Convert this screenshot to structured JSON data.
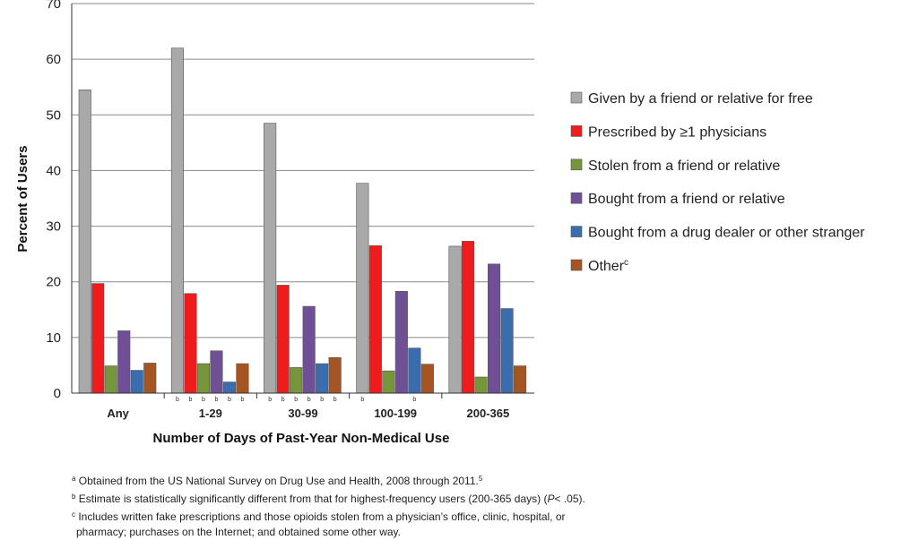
{
  "chart_data": {
    "type": "bar",
    "title": "",
    "xlabel": "Number of Days of Past-Year Non-Medical Use",
    "ylabel": "Percent of Users",
    "ylim": [
      0,
      70
    ],
    "yticks": [
      "0",
      "10",
      "20",
      "30",
      "40",
      "50",
      "60",
      "70"
    ],
    "grid": true,
    "legend_position": "right",
    "categories": [
      "Any",
      "1-29",
      "30-99",
      "100-199",
      "200-365"
    ],
    "series": [
      {
        "name": "Given by a friend or relative for free",
        "color": "#a9a9a9",
        "values": [
          54.5,
          62.0,
          48.5,
          37.7,
          26.4
        ]
      },
      {
        "name": "Prescribed by ≥1 physicians",
        "color": "#ee1c1c",
        "values": [
          19.7,
          17.9,
          19.4,
          26.5,
          27.3
        ]
      },
      {
        "name": "Stolen from a friend or relative",
        "color": "#77963c",
        "values": [
          4.9,
          5.3,
          4.6,
          4.0,
          2.9
        ]
      },
      {
        "name": "Bought from a friend or relative",
        "color": "#6f4f95",
        "values": [
          11.2,
          7.6,
          15.6,
          18.3,
          23.2
        ]
      },
      {
        "name": "Bought from a drug dealer or other stranger",
        "color": "#3a6cae",
        "values": [
          4.1,
          2.0,
          5.3,
          8.1,
          15.2
        ]
      },
      {
        "name": "Other",
        "color": "#a55522",
        "values": [
          5.4,
          5.3,
          6.4,
          5.2,
          4.9
        ]
      }
    ],
    "significance_marks": [
      {
        "category": "1-29",
        "series": [
          0,
          1,
          2,
          3,
          4,
          5
        ],
        "label": "b"
      },
      {
        "category": "30-99",
        "series": [
          0,
          1,
          2,
          3,
          4,
          5
        ],
        "label": "b"
      },
      {
        "category": "100-199",
        "series": [
          0,
          4
        ],
        "label": "b"
      }
    ],
    "legend_superscripts": {
      "5": "c"
    }
  },
  "footnotes": [
    {
      "mark": "a",
      "text": "Obtained from the US National Survey on Drug Use and Health, 2008 through 2011.",
      "suffix": "5"
    },
    {
      "mark": "b",
      "text": "Estimate is statistically significantly different from that for highest-frequency users (200-365 days) (",
      "italic": "P",
      "tail": "< .05)."
    },
    {
      "mark": "c",
      "text": "Includes written fake prescriptions and those opioids stolen from a physician’s office, clinic, hospital, or"
    },
    {
      "mark": "",
      "text": "pharmacy; purchases on the Internet; and obtained some other way."
    }
  ]
}
